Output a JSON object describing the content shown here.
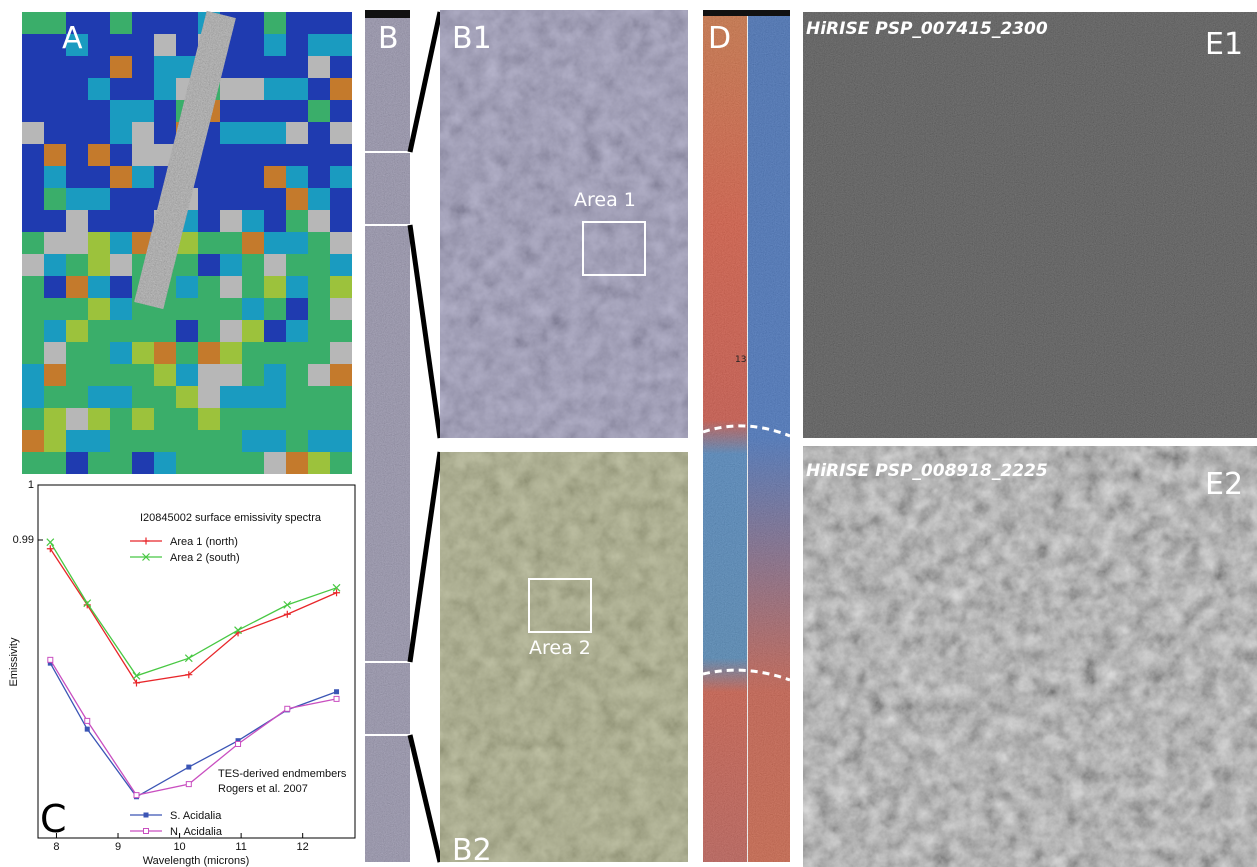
{
  "labels": {
    "a": "A",
    "b": "B",
    "b1": "B1",
    "b2": "B2",
    "d": "D",
    "d_marker": "13",
    "e1": "E1",
    "e2": "E2",
    "area1": "Area 1",
    "area2": "Area 2"
  },
  "hirise": [
    "HiRISE PSP_007415_2300",
    "HiRISE PSP_008918_2225"
  ],
  "chart_data": {
    "type": "line",
    "panel_label": "C",
    "title": "I20845002 surface emissivity spectra",
    "x_label": "Wavelength (microns)",
    "y_label": "Emissivity",
    "annotations": [
      "TES-derived endmembers",
      "Rogers et al. 2007"
    ],
    "x": [
      7.9,
      8.5,
      9.3,
      10.15,
      10.95,
      11.75,
      12.55
    ],
    "series": [
      {
        "name": "Area 1 (north)",
        "color": "#e8262a",
        "marker": "plus",
        "values": [
          0.9884,
          0.9782,
          0.964,
          0.9655,
          0.9731,
          0.9765,
          0.9804
        ]
      },
      {
        "name": "Area 2 (south)",
        "color": "#48c843",
        "marker": "x",
        "values": [
          0.9896,
          0.9785,
          0.9653,
          0.9685,
          0.9736,
          0.9782,
          0.9813
        ]
      },
      {
        "name": "S. Acidalia",
        "color": "#3b55b5",
        "marker": "square",
        "values": [
          0.9676,
          0.9556,
          0.9433,
          0.9487,
          0.9535,
          0.9591,
          0.9624
        ]
      },
      {
        "name": "N. Acidalia",
        "color": "#c94fc0",
        "marker": "open-square",
        "values": [
          0.9682,
          0.9571,
          0.9436,
          0.9456,
          0.9529,
          0.9593,
          0.9611
        ]
      }
    ],
    "xlim": [
      7.7,
      12.85
    ],
    "ylim": [
      0.9358,
      1
    ],
    "xticks": [
      8,
      9,
      10,
      11,
      12
    ],
    "yticks": [
      0.99,
      1
    ]
  }
}
